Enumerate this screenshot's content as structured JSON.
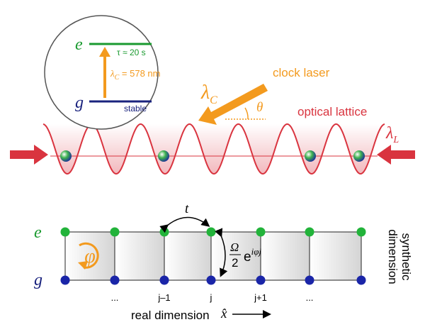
{
  "inset": {
    "excited_label": "e",
    "ground_label": "g",
    "lifetime": "τ ≈ 20 s",
    "transition_symbol": "λ",
    "transition_subscript": "C",
    "transition_value": " = 578 nm",
    "ground_note": "stable"
  },
  "lattice": {
    "laser_label": "clock laser",
    "laser_symbol": "λ",
    "laser_subscript": "C",
    "angle": "θ",
    "lattice_label": "optical lattice",
    "lattice_symbol": "λ",
    "lattice_subscript": "L"
  },
  "synthetic": {
    "excited_label": "e",
    "ground_label": "g",
    "tunneling": "t",
    "rabi_numerator": "Ω",
    "rabi_denominator": "2",
    "rabi_base": "e",
    "rabi_phase": "iφj",
    "flux": "φ",
    "site_labels": [
      "...",
      "j–1",
      "j",
      "j+1",
      "..."
    ],
    "vertical_label": [
      "synthetic",
      "dimension"
    ],
    "horizontal_label": "real dimension",
    "horizontal_symbol": "x̂"
  }
}
